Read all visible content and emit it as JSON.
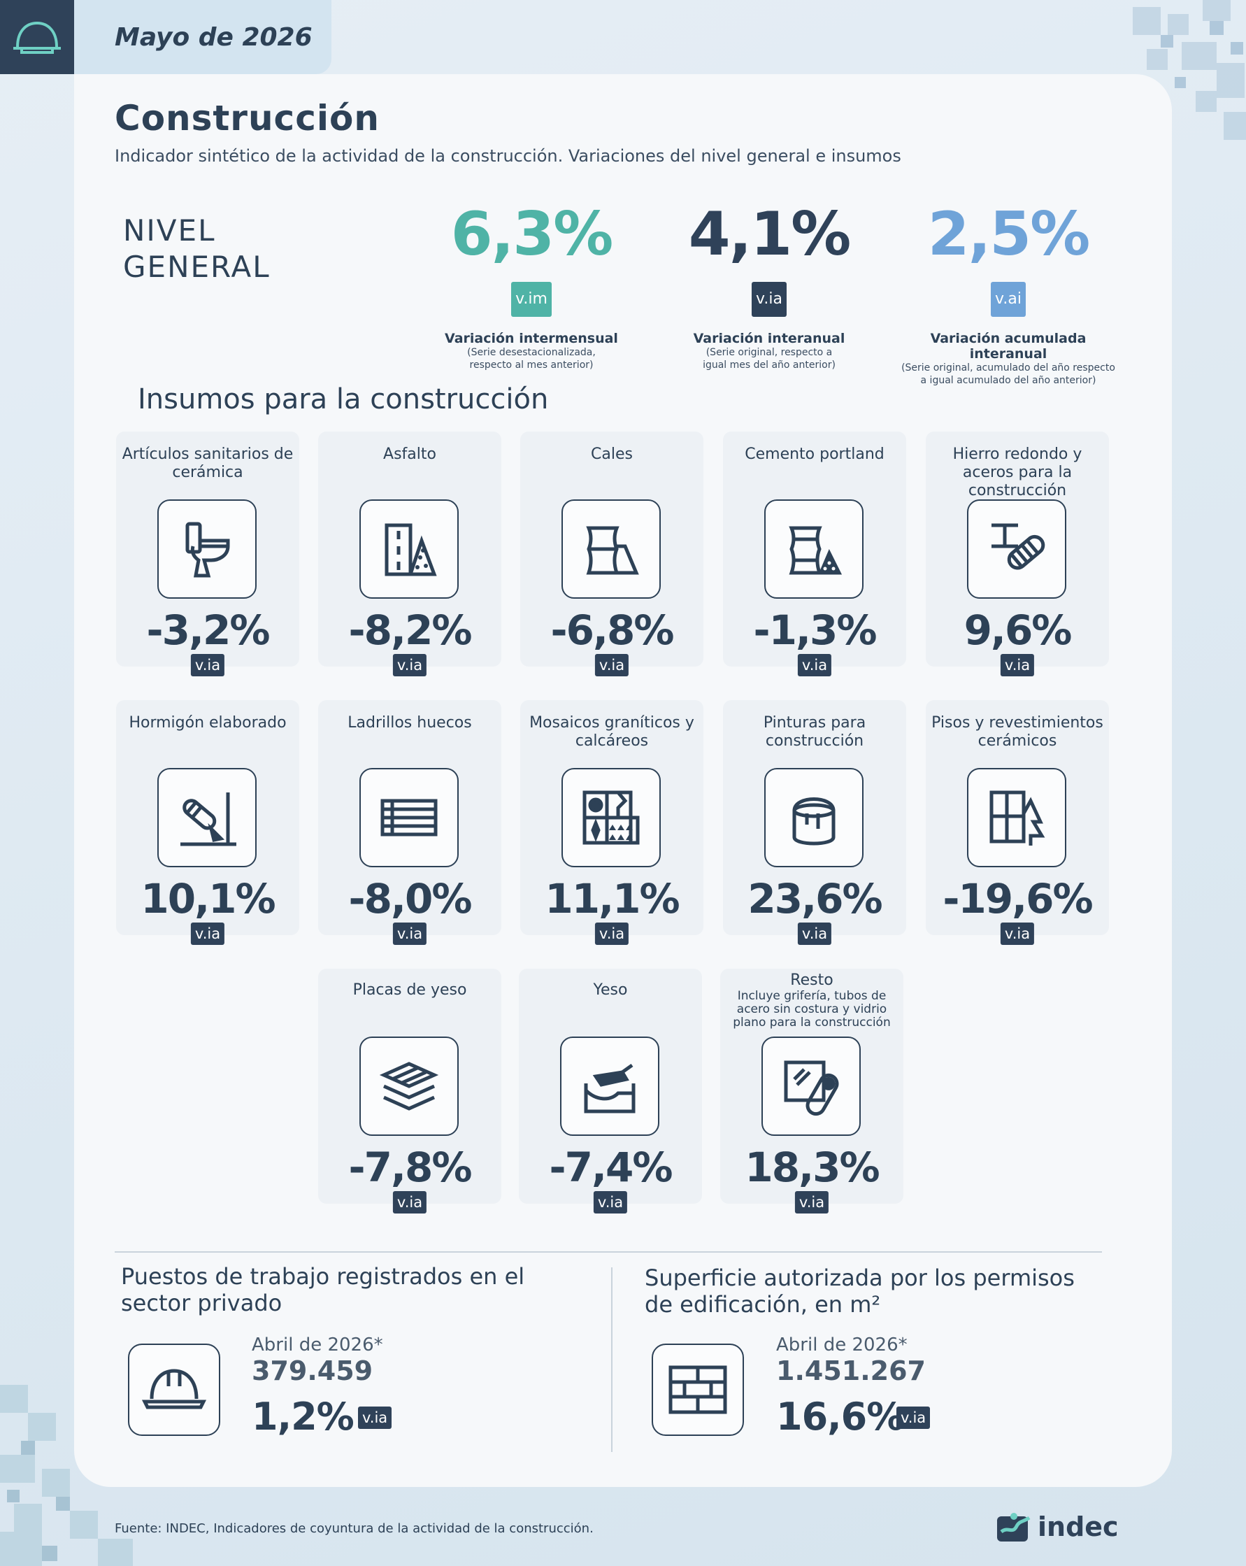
{
  "header": {
    "date": "Mayo de 2026",
    "logo_icon": "hard-hat-icon"
  },
  "title": "Construcción",
  "subtitle": "Indicador sintético de la actividad de la construcción. Variaciones del nivel general e insumos",
  "nivel_general": {
    "label_line1": "NIVEL",
    "label_line2": "GENERAL",
    "kpis": [
      {
        "value": "6,3%",
        "tag": "v.im",
        "label": "Variación intermensual",
        "note1": "(Serie desestacionalizada,",
        "note2": "respecto al mes anterior)",
        "color": "#4fb3a6"
      },
      {
        "value": "4,1%",
        "tag": "v.ia",
        "label": "Variación interanual",
        "note1": "(Serie original, respecto a",
        "note2": "igual mes del año anterior)",
        "color": "#2f4259"
      },
      {
        "value": "2,5%",
        "tag": "v.ai",
        "label": "Variación acumulada interanual",
        "note1": "(Serie original, acumulado del año respecto",
        "note2": "a igual acumulado del año anterior)",
        "color": "#6fa3d8"
      }
    ]
  },
  "insumos": {
    "title": "Insumos para la construcción",
    "tag": "v.ia",
    "items": [
      {
        "name": "Artículos sanitarios de cerámica",
        "value": "-3,2%",
        "icon": "toilet-icon"
      },
      {
        "name": "Asfalto",
        "value": "-8,2%",
        "icon": "road-icon"
      },
      {
        "name": "Cales",
        "value": "-6,8%",
        "icon": "bags-icon"
      },
      {
        "name": "Cemento portland",
        "value": "-1,3%",
        "icon": "cement-bags-icon"
      },
      {
        "name": "Hierro redondo y aceros para la construcción",
        "value": "9,6%",
        "icon": "steel-beam-icon"
      },
      {
        "name": "Hormigón elaborado",
        "value": "10,1%",
        "icon": "concrete-icon"
      },
      {
        "name": "Ladrillos huecos",
        "value": "-8,0%",
        "icon": "hollow-brick-icon"
      },
      {
        "name": "Mosaicos graníticos y calcáreos",
        "value": "11,1%",
        "icon": "mosaic-icon"
      },
      {
        "name": "Pinturas para construcción",
        "value": "23,6%",
        "icon": "paint-bucket-icon"
      },
      {
        "name": "Pisos y revestimientos cerámicos",
        "value": "-19,6%",
        "icon": "tiles-icon"
      },
      {
        "name": "Placas de yeso",
        "value": "-7,8%",
        "icon": "plasterboard-icon"
      },
      {
        "name": "Yeso",
        "value": "-7,4%",
        "icon": "plaster-icon"
      },
      {
        "name": "Resto",
        "sub": "Incluye grifería, tubos de acero sin costura y vidrio plano para la construcción",
        "value": "18,3%",
        "icon": "glass-pipe-icon"
      }
    ]
  },
  "empleo": {
    "title_line1": "Puestos de trabajo registrados en el",
    "title_line2": "sector privado",
    "date": "Abril de 2026*",
    "number": "379.459",
    "pct": "1,2%",
    "tag": "v.ia",
    "icon": "hard-hat-icon"
  },
  "superficie": {
    "title_line1": "Superficie autorizada por los permisos",
    "title_line2": "de edificación, en m²",
    "date": "Abril de 2026*",
    "number": "1.451.267",
    "pct": "16,6%",
    "tag": "v.ia",
    "icon": "brick-wall-icon"
  },
  "footer": {
    "source": "Fuente: INDEC, Indicadores de coyuntura de la actividad de la construcción.",
    "brand": "indec"
  }
}
